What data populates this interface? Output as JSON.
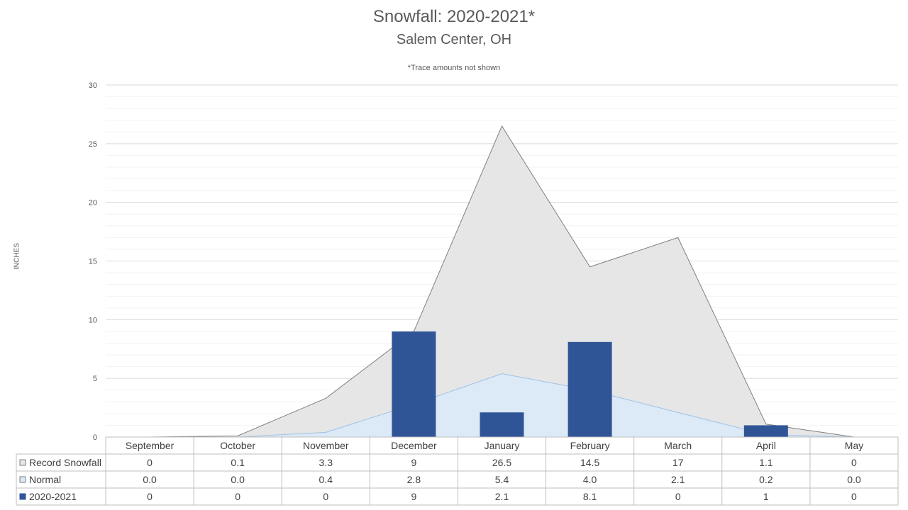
{
  "chart_data": {
    "type": "bar",
    "title": "Snowfall: 2020-2021*",
    "subtitle": "Salem Center, OH",
    "note": "*Trace amounts not shown",
    "ylabel": "INCHES",
    "xlabel": "",
    "ylim": [
      0,
      30
    ],
    "yticks": [
      0,
      5,
      10,
      15,
      20,
      25,
      30
    ],
    "categories": [
      "September",
      "October",
      "November",
      "December",
      "January",
      "February",
      "March",
      "April",
      "May"
    ],
    "series": [
      {
        "name": "Record Snowfall",
        "type": "area",
        "color": "#e6e6e6",
        "line_color": "#7f7f7f",
        "values": [
          0,
          0.1,
          3.3,
          9,
          26.5,
          14.5,
          17,
          1.1,
          0
        ],
        "table": [
          "0",
          "0.1",
          "3.3",
          "9",
          "26.5",
          "14.5",
          "17",
          "1.1",
          "0"
        ]
      },
      {
        "name": "Normal",
        "type": "area",
        "color": "#dce9f6",
        "line_color": "#9dc3e6",
        "values": [
          0.0,
          0.0,
          0.4,
          2.8,
          5.4,
          4.0,
          2.1,
          0.2,
          0.0
        ],
        "table": [
          "0.0",
          "0.0",
          "0.4",
          "2.8",
          "5.4",
          "4.0",
          "2.1",
          "0.2",
          "0.0"
        ]
      },
      {
        "name": "2020-2021",
        "type": "bar",
        "color": "#2f5597",
        "values": [
          0,
          0,
          0,
          9,
          2.1,
          8.1,
          0,
          1,
          0
        ],
        "table": [
          "0",
          "0",
          "0",
          "9",
          "2.1",
          "8.1",
          "0",
          "1",
          "0"
        ]
      }
    ],
    "grid": true,
    "legend": "data-table"
  }
}
